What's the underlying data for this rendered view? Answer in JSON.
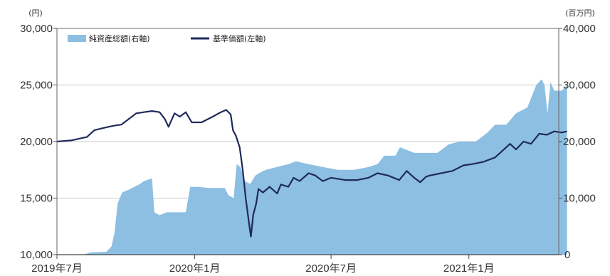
{
  "chart_data": {
    "type": "area",
    "left_axis": {
      "unit": "(円)",
      "ylim": [
        10000,
        30000
      ],
      "ticks": [
        "10,000",
        "15,000",
        "20,000",
        "25,000",
        "30,000"
      ],
      "tick_values": [
        10000,
        15000,
        20000,
        25000,
        30000
      ]
    },
    "right_axis": {
      "unit": "(百万円)",
      "ylim": [
        0,
        40000
      ],
      "ticks": [
        "0",
        "10,000",
        "20,000",
        "30,000",
        "40,000"
      ],
      "tick_values": [
        0,
        10000,
        20000,
        30000,
        40000
      ]
    },
    "x_axis": {
      "range": [
        "2019-07",
        "2021-05"
      ],
      "ticks": [
        "2019年7月",
        "2020年1月",
        "2020年7月",
        "2021年1月"
      ],
      "tick_values": [
        "2019-07",
        "2020-01",
        "2020-07",
        "2021-01"
      ]
    },
    "legend_position": "top-left",
    "grid": "horizontal",
    "series": [
      {
        "name": "純資産総額(右軸)",
        "type": "area",
        "axis": "right",
        "color": "#8dbfe3",
        "points": [
          [
            "2019-07-01",
            0
          ],
          [
            "2019-08-05",
            0
          ],
          [
            "2019-08-15",
            400
          ],
          [
            "2019-09-05",
            500
          ],
          [
            "2019-09-12",
            1500
          ],
          [
            "2019-09-16",
            4000
          ],
          [
            "2019-09-20",
            9000
          ],
          [
            "2019-09-26",
            11000
          ],
          [
            "2019-10-05",
            11500
          ],
          [
            "2019-10-20",
            12500
          ],
          [
            "2019-10-25",
            13000
          ],
          [
            "2019-11-05",
            13500
          ],
          [
            "2019-11-08",
            7500
          ],
          [
            "2019-11-15",
            7000
          ],
          [
            "2019-11-25",
            7500
          ],
          [
            "2019-12-10",
            7500
          ],
          [
            "2019-12-20",
            7500
          ],
          [
            "2019-12-26",
            12000
          ],
          [
            "2020-01-05",
            12000
          ],
          [
            "2020-01-20",
            11800
          ],
          [
            "2020-02-10",
            11800
          ],
          [
            "2020-02-15",
            10500
          ],
          [
            "2020-02-22",
            10000
          ],
          [
            "2020-02-26",
            16000
          ],
          [
            "2020-03-02",
            15500
          ],
          [
            "2020-03-08",
            13000
          ],
          [
            "2020-03-15",
            12500
          ],
          [
            "2020-03-22",
            14000
          ],
          [
            "2020-03-28",
            14500
          ],
          [
            "2020-04-05",
            15000
          ],
          [
            "2020-04-20",
            15500
          ],
          [
            "2020-05-05",
            16000
          ],
          [
            "2020-05-15",
            16500
          ],
          [
            "2020-06-01",
            16000
          ],
          [
            "2020-06-20",
            15500
          ],
          [
            "2020-07-10",
            15000
          ],
          [
            "2020-08-01",
            15000
          ],
          [
            "2020-08-20",
            15500
          ],
          [
            "2020-09-01",
            16000
          ],
          [
            "2020-09-10",
            17500
          ],
          [
            "2020-09-25",
            17500
          ],
          [
            "2020-10-01",
            19000
          ],
          [
            "2020-10-20",
            18000
          ],
          [
            "2020-11-05",
            18000
          ],
          [
            "2020-11-20",
            18000
          ],
          [
            "2020-12-05",
            19500
          ],
          [
            "2020-12-20",
            20000
          ],
          [
            "2021-01-10",
            20000
          ],
          [
            "2021-01-25",
            21500
          ],
          [
            "2021-02-05",
            23000
          ],
          [
            "2021-02-20",
            23000
          ],
          [
            "2021-03-05",
            25000
          ],
          [
            "2021-03-20",
            26000
          ],
          [
            "2021-04-01",
            30000
          ],
          [
            "2021-04-08",
            31000
          ],
          [
            "2021-04-12",
            30000
          ],
          [
            "2021-04-16",
            25000
          ],
          [
            "2021-04-20",
            30500
          ],
          [
            "2021-04-25",
            29000
          ],
          [
            "2021-05-05",
            29000
          ],
          [
            "2021-05-12",
            30000
          ]
        ]
      },
      {
        "name": "基準価額(左軸)",
        "type": "line",
        "axis": "left",
        "color": "#1f2a5a",
        "points": [
          [
            "2019-07-01",
            20000
          ],
          [
            "2019-07-20",
            20100
          ],
          [
            "2019-08-10",
            20400
          ],
          [
            "2019-08-20",
            21000
          ],
          [
            "2019-09-01",
            21200
          ],
          [
            "2019-09-15",
            21400
          ],
          [
            "2019-09-25",
            21500
          ],
          [
            "2019-10-05",
            22000
          ],
          [
            "2019-10-15",
            22500
          ],
          [
            "2019-10-25",
            22600
          ],
          [
            "2019-11-05",
            22700
          ],
          [
            "2019-11-15",
            22600
          ],
          [
            "2019-11-22",
            22000
          ],
          [
            "2019-11-27",
            21300
          ],
          [
            "2019-12-05",
            22500
          ],
          [
            "2019-12-12",
            22200
          ],
          [
            "2019-12-20",
            22600
          ],
          [
            "2019-12-28",
            21700
          ],
          [
            "2020-01-10",
            21700
          ],
          [
            "2020-01-25",
            22200
          ],
          [
            "2020-02-05",
            22600
          ],
          [
            "2020-02-12",
            22800
          ],
          [
            "2020-02-18",
            22400
          ],
          [
            "2020-02-21",
            21000
          ],
          [
            "2020-02-25",
            20500
          ],
          [
            "2020-03-01",
            19500
          ],
          [
            "2020-03-05",
            17500
          ],
          [
            "2020-03-09",
            15000
          ],
          [
            "2020-03-13",
            13000
          ],
          [
            "2020-03-16",
            11600
          ],
          [
            "2020-03-19",
            13500
          ],
          [
            "2020-03-23",
            14500
          ],
          [
            "2020-03-26",
            15800
          ],
          [
            "2020-04-01",
            15500
          ],
          [
            "2020-04-10",
            16000
          ],
          [
            "2020-04-20",
            15400
          ],
          [
            "2020-04-25",
            16200
          ],
          [
            "2020-05-05",
            16000
          ],
          [
            "2020-05-12",
            16800
          ],
          [
            "2020-05-20",
            16500
          ],
          [
            "2020-06-01",
            17200
          ],
          [
            "2020-06-10",
            17000
          ],
          [
            "2020-06-20",
            16500
          ],
          [
            "2020-07-01",
            16800
          ],
          [
            "2020-07-20",
            16600
          ],
          [
            "2020-08-05",
            16600
          ],
          [
            "2020-08-20",
            16800
          ],
          [
            "2020-09-01",
            17200
          ],
          [
            "2020-09-15",
            17000
          ],
          [
            "2020-09-30",
            16600
          ],
          [
            "2020-10-10",
            17400
          ],
          [
            "2020-10-20",
            16800
          ],
          [
            "2020-10-28",
            16400
          ],
          [
            "2020-11-05",
            16900
          ],
          [
            "2020-11-10",
            17000
          ],
          [
            "2020-11-25",
            17200
          ],
          [
            "2020-12-10",
            17400
          ],
          [
            "2020-12-25",
            17900
          ],
          [
            "2021-01-05",
            18000
          ],
          [
            "2021-01-20",
            18200
          ],
          [
            "2021-02-05",
            18600
          ],
          [
            "2021-02-15",
            19200
          ],
          [
            "2021-02-25",
            19800
          ],
          [
            "2021-03-05",
            19300
          ],
          [
            "2021-03-15",
            20000
          ],
          [
            "2021-03-25",
            19800
          ],
          [
            "2021-04-05",
            20700
          ],
          [
            "2021-04-15",
            20600
          ],
          [
            "2021-04-25",
            20900
          ],
          [
            "2021-05-05",
            20800
          ],
          [
            "2021-05-12",
            20900
          ]
        ]
      }
    ]
  }
}
